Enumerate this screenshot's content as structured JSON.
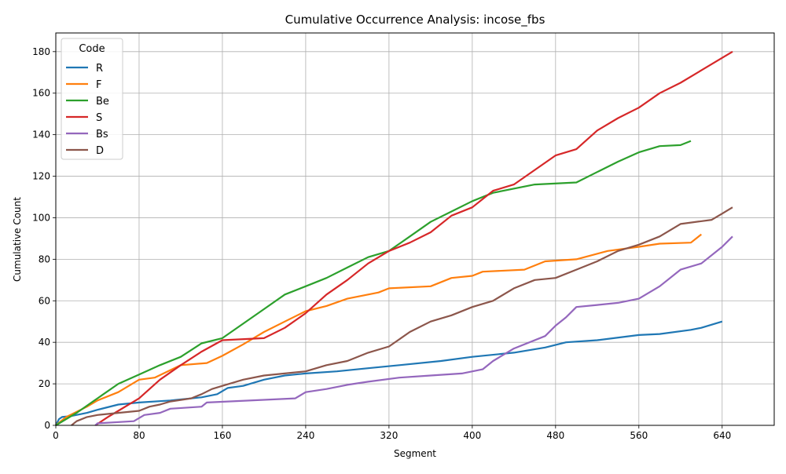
{
  "chart_data": {
    "type": "line",
    "title": "Cumulative Occurrence Analysis: incose_fbs",
    "xlabel": "Segment",
    "ylabel": "Cumulative Count",
    "xlim": [
      0,
      690
    ],
    "ylim": [
      0,
      189
    ],
    "xticks": [
      0,
      80,
      160,
      240,
      320,
      400,
      480,
      560,
      640
    ],
    "yticks": [
      0,
      20,
      40,
      60,
      80,
      100,
      120,
      140,
      160,
      180
    ],
    "grid": true,
    "legend": {
      "title": "Code",
      "placement": "top-left"
    },
    "series": [
      {
        "name": "R",
        "color": "#1f77b4",
        "points": [
          [
            0,
            0
          ],
          [
            3,
            3
          ],
          [
            6,
            4
          ],
          [
            15,
            4.5
          ],
          [
            30,
            6
          ],
          [
            40,
            7.5
          ],
          [
            60,
            10
          ],
          [
            80,
            11
          ],
          [
            110,
            12
          ],
          [
            140,
            13.5
          ],
          [
            155,
            15
          ],
          [
            165,
            18
          ],
          [
            180,
            19
          ],
          [
            200,
            22
          ],
          [
            220,
            24
          ],
          [
            240,
            25
          ],
          [
            270,
            26
          ],
          [
            300,
            27.5
          ],
          [
            330,
            29
          ],
          [
            370,
            31
          ],
          [
            400,
            33
          ],
          [
            440,
            35
          ],
          [
            470,
            37.5
          ],
          [
            490,
            40
          ],
          [
            520,
            41
          ],
          [
            560,
            43.5
          ],
          [
            580,
            44
          ],
          [
            610,
            46
          ],
          [
            620,
            47
          ],
          [
            640,
            50
          ]
        ]
      },
      {
        "name": "F",
        "color": "#ff7f0e",
        "points": [
          [
            0,
            0
          ],
          [
            10,
            4
          ],
          [
            30,
            9
          ],
          [
            40,
            12
          ],
          [
            60,
            16
          ],
          [
            80,
            22
          ],
          [
            95,
            23
          ],
          [
            120,
            29
          ],
          [
            145,
            30
          ],
          [
            160,
            33.5
          ],
          [
            180,
            39
          ],
          [
            200,
            45
          ],
          [
            220,
            50
          ],
          [
            240,
            55
          ],
          [
            260,
            57.5
          ],
          [
            280,
            61
          ],
          [
            310,
            64
          ],
          [
            320,
            66
          ],
          [
            360,
            67
          ],
          [
            380,
            71
          ],
          [
            400,
            72
          ],
          [
            410,
            74
          ],
          [
            450,
            75
          ],
          [
            470,
            79
          ],
          [
            500,
            80
          ],
          [
            530,
            84
          ],
          [
            560,
            86
          ],
          [
            580,
            87.5
          ],
          [
            610,
            88
          ],
          [
            620,
            92
          ]
        ]
      },
      {
        "name": "Be",
        "color": "#2ca02c",
        "points": [
          [
            0,
            0
          ],
          [
            20,
            6
          ],
          [
            40,
            13
          ],
          [
            60,
            20
          ],
          [
            80,
            24.5
          ],
          [
            100,
            29
          ],
          [
            120,
            33
          ],
          [
            140,
            39.5
          ],
          [
            160,
            42
          ],
          [
            180,
            49
          ],
          [
            200,
            56
          ],
          [
            220,
            63
          ],
          [
            240,
            67
          ],
          [
            260,
            71
          ],
          [
            280,
            76
          ],
          [
            300,
            81
          ],
          [
            320,
            84
          ],
          [
            340,
            91
          ],
          [
            360,
            98
          ],
          [
            380,
            103
          ],
          [
            400,
            108
          ],
          [
            420,
            112
          ],
          [
            460,
            116
          ],
          [
            500,
            117
          ],
          [
            520,
            122
          ],
          [
            540,
            127
          ],
          [
            560,
            131.5
          ],
          [
            580,
            134.5
          ],
          [
            600,
            135
          ],
          [
            610,
            137
          ]
        ]
      },
      {
        "name": "S",
        "color": "#d62728",
        "points": [
          [
            38,
            0
          ],
          [
            50,
            4
          ],
          [
            60,
            7
          ],
          [
            80,
            13
          ],
          [
            100,
            22
          ],
          [
            120,
            29
          ],
          [
            140,
            35.5
          ],
          [
            160,
            41
          ],
          [
            200,
            42
          ],
          [
            220,
            47
          ],
          [
            240,
            54
          ],
          [
            260,
            63
          ],
          [
            280,
            70
          ],
          [
            300,
            78
          ],
          [
            320,
            84
          ],
          [
            340,
            88
          ],
          [
            360,
            93
          ],
          [
            380,
            101
          ],
          [
            400,
            105
          ],
          [
            420,
            113
          ],
          [
            440,
            116
          ],
          [
            460,
            123
          ],
          [
            480,
            130
          ],
          [
            500,
            133
          ],
          [
            520,
            142
          ],
          [
            540,
            148
          ],
          [
            560,
            153
          ],
          [
            580,
            160
          ],
          [
            600,
            165
          ],
          [
            620,
            171
          ],
          [
            640,
            177
          ],
          [
            650,
            180
          ]
        ]
      },
      {
        "name": "Bs",
        "color": "#9467bd",
        "points": [
          [
            38,
            0
          ],
          [
            40,
            1
          ],
          [
            75,
            2
          ],
          [
            85,
            5
          ],
          [
            100,
            6
          ],
          [
            110,
            8
          ],
          [
            140,
            9
          ],
          [
            145,
            11
          ],
          [
            230,
            13
          ],
          [
            240,
            16
          ],
          [
            260,
            17.5
          ],
          [
            280,
            19.5
          ],
          [
            300,
            21
          ],
          [
            330,
            23
          ],
          [
            360,
            24
          ],
          [
            390,
            25
          ],
          [
            410,
            27
          ],
          [
            420,
            31
          ],
          [
            440,
            37
          ],
          [
            470,
            43
          ],
          [
            480,
            48
          ],
          [
            490,
            52
          ],
          [
            500,
            57
          ],
          [
            520,
            58
          ],
          [
            540,
            59
          ],
          [
            560,
            61
          ],
          [
            580,
            67
          ],
          [
            600,
            75
          ],
          [
            620,
            78
          ],
          [
            640,
            86
          ],
          [
            650,
            91
          ]
        ]
      },
      {
        "name": "D",
        "color": "#8c564b",
        "points": [
          [
            15,
            0
          ],
          [
            20,
            2
          ],
          [
            30,
            4
          ],
          [
            40,
            5
          ],
          [
            60,
            6
          ],
          [
            80,
            7
          ],
          [
            90,
            9
          ],
          [
            100,
            10
          ],
          [
            110,
            11.5
          ],
          [
            130,
            13
          ],
          [
            140,
            15
          ],
          [
            150,
            17.5
          ],
          [
            160,
            19
          ],
          [
            180,
            22
          ],
          [
            200,
            24
          ],
          [
            240,
            26
          ],
          [
            260,
            29
          ],
          [
            280,
            31
          ],
          [
            300,
            35
          ],
          [
            320,
            38
          ],
          [
            340,
            45
          ],
          [
            360,
            50
          ],
          [
            380,
            53
          ],
          [
            400,
            57
          ],
          [
            420,
            60
          ],
          [
            440,
            66
          ],
          [
            460,
            70
          ],
          [
            480,
            71
          ],
          [
            500,
            75
          ],
          [
            520,
            79
          ],
          [
            540,
            84
          ],
          [
            560,
            87
          ],
          [
            580,
            91
          ],
          [
            600,
            97
          ],
          [
            630,
            99
          ],
          [
            640,
            102
          ],
          [
            650,
            105
          ]
        ]
      }
    ]
  }
}
